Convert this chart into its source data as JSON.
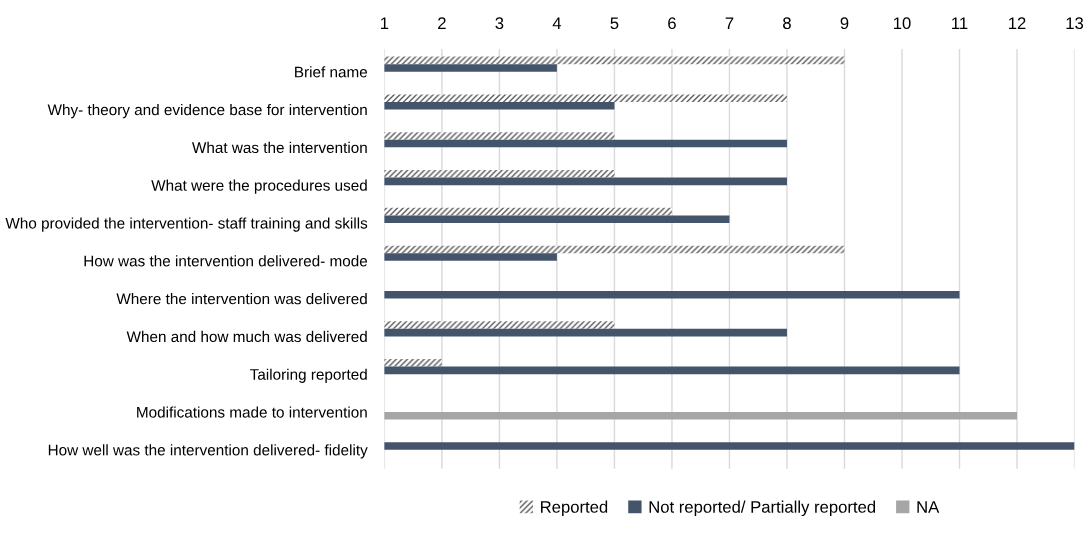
{
  "chart_data": {
    "type": "bar",
    "orientation": "horizontal",
    "categories": [
      "Brief name",
      "Why- theory and evidence base for intervention",
      "What was the intervention",
      "What were the procedures used",
      "Who provided the intervention- staff training and skills",
      "How was the intervention delivered- mode",
      "Where the intervention was delivered",
      "When and how much was delivered",
      "Tailoring reported",
      "Modifications made to intervention",
      "How well was the intervention delivered- fidelity"
    ],
    "series": [
      {
        "name": "Reported",
        "color": "#595959",
        "values": [
          9,
          8,
          5,
          5,
          6,
          9,
          null,
          5,
          2,
          null,
          null
        ]
      },
      {
        "name": "Not reported/ Partially reported",
        "color": "#44546a",
        "values": [
          4,
          5,
          8,
          8,
          7,
          4,
          11,
          8,
          11,
          null,
          13
        ]
      },
      {
        "name": "NA",
        "color": "#a6a6a6",
        "values": [
          null,
          null,
          null,
          null,
          null,
          null,
          null,
          null,
          null,
          12,
          null
        ]
      }
    ],
    "xlim": [
      1,
      13
    ],
    "xticks": [
      1,
      2,
      3,
      4,
      5,
      6,
      7,
      8,
      9,
      10,
      11,
      12,
      13
    ],
    "grid": "x",
    "legend": "bottom"
  }
}
